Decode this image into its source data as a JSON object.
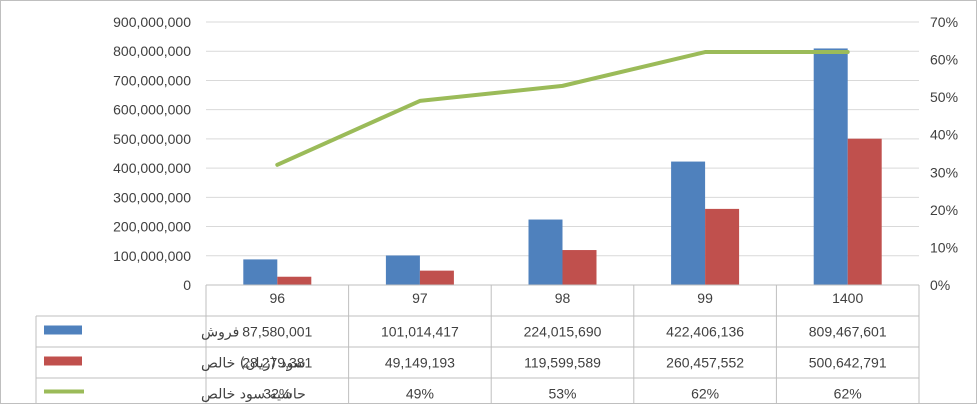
{
  "chart_data": {
    "type": "bar",
    "categories": [
      "96",
      "97",
      "98",
      "99",
      "1400"
    ],
    "series": [
      {
        "name": "فروش",
        "type": "bar",
        "axis": "left",
        "color": "#4f81bd",
        "values": [
          87580001,
          101014417,
          224015690,
          422406136,
          809467601
        ],
        "labels": [
          "87,580,001",
          "101,014,417",
          "224,015,690",
          "422,406,136",
          "809,467,601"
        ]
      },
      {
        "name": "سود (زیان) خالص",
        "type": "bar",
        "axis": "left",
        "color": "#c0504d",
        "values": [
          28279381,
          49149193,
          119599589,
          260457552,
          500642791
        ],
        "labels": [
          "28,279,381",
          "49,149,193",
          "119,599,589",
          "260,457,552",
          "500,642,791"
        ]
      },
      {
        "name": "حاشیه سود خالص",
        "type": "line",
        "axis": "right",
        "color": "#9bbb59",
        "values": [
          32,
          49,
          53,
          62,
          62
        ],
        "labels": [
          "32%",
          "49%",
          "53%",
          "62%",
          "62%"
        ]
      }
    ],
    "y_left": {
      "ylim": [
        0,
        900000000
      ],
      "ticks": [
        0,
        100000000,
        200000000,
        300000000,
        400000000,
        500000000,
        600000000,
        700000000,
        800000000,
        900000000
      ],
      "tick_labels": [
        "0",
        "100,000,000",
        "200,000,000",
        "300,000,000",
        "400,000,000",
        "500,000,000",
        "600,000,000",
        "700,000,000",
        "800,000,000",
        "900,000,000"
      ]
    },
    "y_right": {
      "ylim": [
        0,
        70
      ],
      "ticks": [
        0,
        10,
        20,
        30,
        40,
        50,
        60,
        70
      ],
      "tick_labels": [
        "0%",
        "10%",
        "20%",
        "30%",
        "40%",
        "50%",
        "60%",
        "70%"
      ]
    },
    "grid": true,
    "legend": "data-table"
  }
}
